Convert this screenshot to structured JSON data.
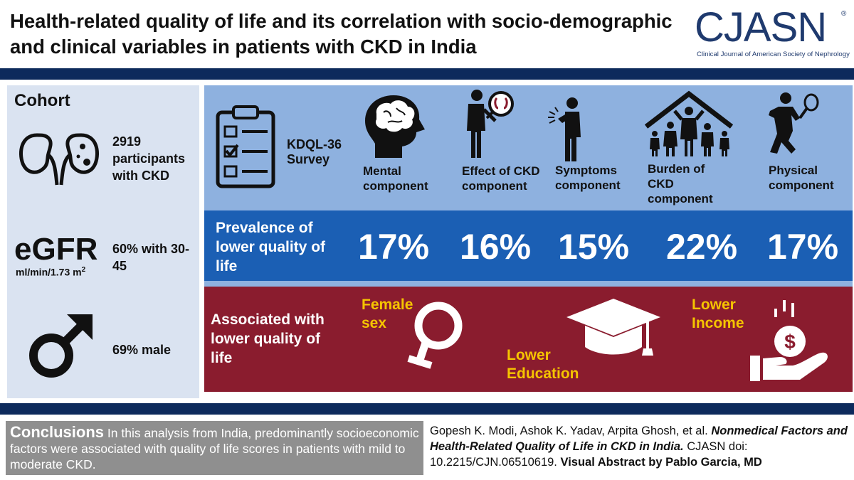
{
  "title": "Health-related quality of life and its correlation with socio-demographic and clinical variables in patients with CKD in India",
  "logo": {
    "name": "CJASN",
    "registered": "®",
    "subtitle": "Clinical Journal of American Society of Nephrology"
  },
  "cohort": {
    "heading": "Cohort",
    "participants": "2919 participants with CKD",
    "egfr_label": "eGFR",
    "egfr_unit": "ml/min/1.73 m",
    "egfr_unit_sup": "2",
    "egfr_value": "60% with 30-45",
    "male": "69% male"
  },
  "survey": {
    "label": "KDQL-36 Survey",
    "components": [
      {
        "label": "Mental component",
        "prevalence": "17%",
        "icon": "brain-head-icon"
      },
      {
        "label": "Effect of CKD component",
        "prevalence": "16%",
        "icon": "kidney-magnifier-icon"
      },
      {
        "label": "Symptoms component",
        "prevalence": "15%",
        "icon": "pain-person-icon"
      },
      {
        "label": "Burden of CKD component",
        "prevalence": "22%",
        "icon": "family-house-icon"
      },
      {
        "label": "Physical component",
        "prevalence": "17%",
        "icon": "tennis-player-icon"
      }
    ]
  },
  "prevalence_label": "Prevalence of lower quality of life",
  "association": {
    "label": "Associated with lower quality of life",
    "factors": [
      {
        "label": "Female sex",
        "icon": "female-symbol-icon"
      },
      {
        "label": "Lower Education",
        "icon": "graduation-cap-icon"
      },
      {
        "label": "Lower Income",
        "icon": "money-hand-icon"
      }
    ]
  },
  "conclusions": {
    "heading": "Conclusions",
    "text": "In this analysis from India, predominantly socioeconomic factors were associated with quality of life scores in patients with mild to moderate CKD."
  },
  "citation": {
    "authors": "Gopesh K. Modi, Ashok K. Yadav, Arpita Ghosh, et al.",
    "article": "Nonmedical Factors and Health-Related Quality of Life in CKD in India.",
    "journal": "CJASN",
    "doi": "doi: 10.2215/CJN.06510619.",
    "credit": "Visual Abstract by Pablo Garcia, MD"
  },
  "colors": {
    "navy": "#0d2a5c",
    "light_blue": "#8eb1df",
    "blue": "#1b5fb4",
    "maroon": "#8a1c2e",
    "yellow": "#f5c400",
    "gray": "#8f8f8f",
    "pale": "#dae3f1"
  }
}
